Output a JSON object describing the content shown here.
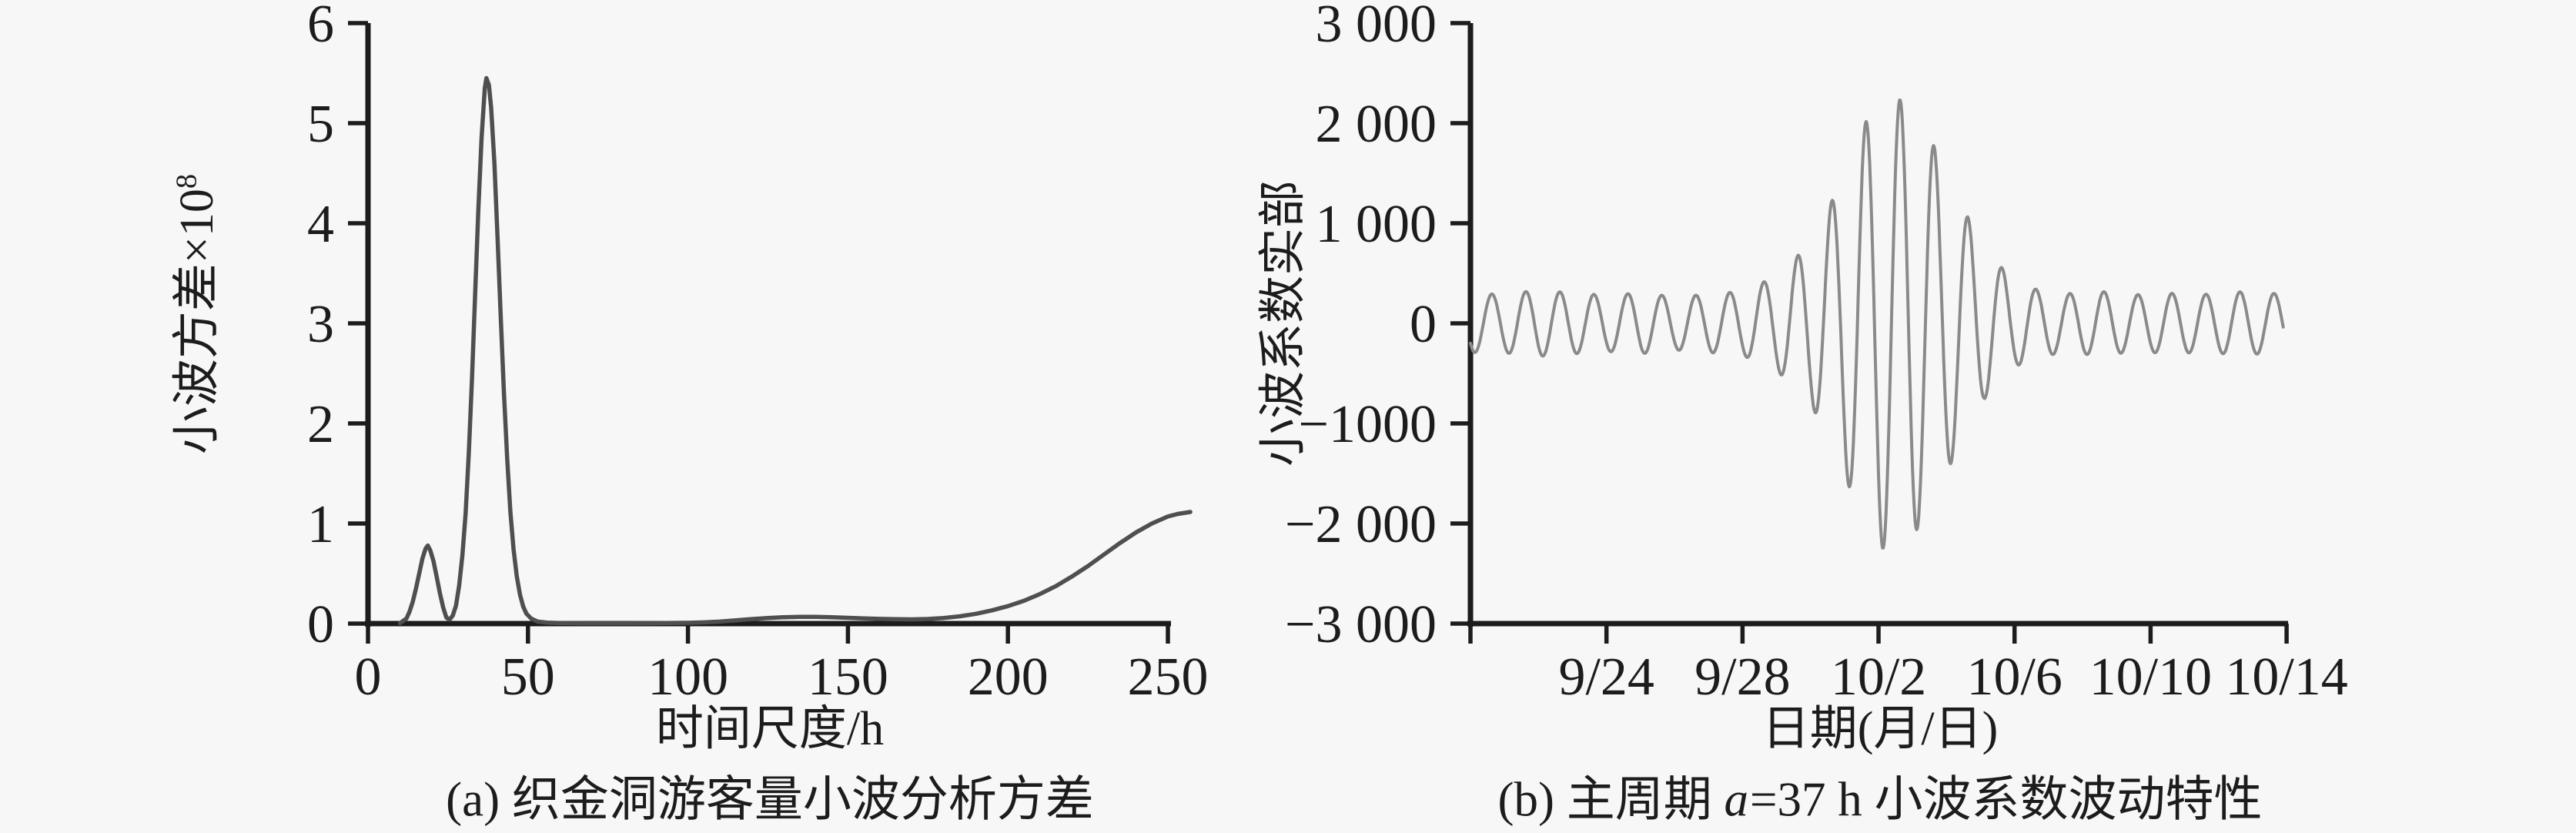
{
  "figure": {
    "background_color": "#f7f7f7",
    "axis_color": "#1c1c1c",
    "text_color": "#1c1c1c"
  },
  "chart_data": [
    {
      "type": "line",
      "title": "(a) 织金洞游客量小波分析方差",
      "xlabel": "时间尺度/h",
      "ylabel": "小波方差×10⁸",
      "ylabel_main": "小波方差×10",
      "ylabel_sup": "8",
      "xlim": [
        0,
        257
      ],
      "ylim": [
        0,
        6
      ],
      "grid": false,
      "legend": "none",
      "line_color": "#4f4f4f",
      "x_ticks": [
        0,
        50,
        100,
        150,
        200,
        250
      ],
      "x_tick_labels": [
        "0",
        "50",
        "100",
        "150",
        "200",
        "250"
      ],
      "y_ticks": [
        0,
        1,
        2,
        3,
        4,
        5,
        6
      ],
      "y_tick_labels": [
        "0",
        "1",
        "2",
        "3",
        "4",
        "5",
        "6"
      ],
      "peaks_note": "small peak ~0.78 at 18 h, main peak 5.45 at 37 h, rising tail to ~1.1 at 257 h",
      "points": [
        [
          10,
          0.005
        ],
        [
          12,
          0.05
        ],
        [
          13,
          0.12
        ],
        [
          14,
          0.22
        ],
        [
          15,
          0.35
        ],
        [
          16,
          0.5
        ],
        [
          17,
          0.65
        ],
        [
          18,
          0.75
        ],
        [
          18.7,
          0.78
        ],
        [
          19.5,
          0.73
        ],
        [
          20.5,
          0.62
        ],
        [
          21.5,
          0.46
        ],
        [
          22.5,
          0.3
        ],
        [
          23.5,
          0.16
        ],
        [
          24.5,
          0.06
        ],
        [
          25.5,
          0.04
        ],
        [
          26.5,
          0.08
        ],
        [
          27.5,
          0.18
        ],
        [
          28.5,
          0.38
        ],
        [
          29.5,
          0.68
        ],
        [
          30.5,
          1.1
        ],
        [
          31.5,
          1.7
        ],
        [
          32.5,
          2.45
        ],
        [
          33.5,
          3.3
        ],
        [
          34.5,
          4.15
        ],
        [
          35.5,
          4.85
        ],
        [
          36.5,
          5.35
        ],
        [
          37,
          5.45
        ],
        [
          37.8,
          5.38
        ],
        [
          38.5,
          5.15
        ],
        [
          39.5,
          4.6
        ],
        [
          40.5,
          3.85
        ],
        [
          41.5,
          3.05
        ],
        [
          42.5,
          2.3
        ],
        [
          43.5,
          1.65
        ],
        [
          44.5,
          1.12
        ],
        [
          45.5,
          0.74
        ],
        [
          46.5,
          0.47
        ],
        [
          47.5,
          0.29
        ],
        [
          48.5,
          0.17
        ],
        [
          49.5,
          0.1
        ],
        [
          51,
          0.05
        ],
        [
          53,
          0.02
        ],
        [
          56,
          0.01
        ],
        [
          60,
          0.006
        ],
        [
          70,
          0.004
        ],
        [
          80,
          0.004
        ],
        [
          90,
          0.005
        ],
        [
          100,
          0.008
        ],
        [
          105,
          0.012
        ],
        [
          110,
          0.02
        ],
        [
          115,
          0.032
        ],
        [
          120,
          0.045
        ],
        [
          125,
          0.056
        ],
        [
          130,
          0.064
        ],
        [
          135,
          0.068
        ],
        [
          140,
          0.067
        ],
        [
          145,
          0.063
        ],
        [
          150,
          0.058
        ],
        [
          155,
          0.052
        ],
        [
          160,
          0.047
        ],
        [
          165,
          0.044
        ],
        [
          170,
          0.042
        ],
        [
          175,
          0.046
        ],
        [
          180,
          0.056
        ],
        [
          185,
          0.073
        ],
        [
          190,
          0.098
        ],
        [
          195,
          0.132
        ],
        [
          200,
          0.175
        ],
        [
          205,
          0.228
        ],
        [
          210,
          0.295
        ],
        [
          215,
          0.375
        ],
        [
          220,
          0.47
        ],
        [
          225,
          0.575
        ],
        [
          230,
          0.69
        ],
        [
          235,
          0.805
        ],
        [
          240,
          0.91
        ],
        [
          245,
          1.0
        ],
        [
          250,
          1.07
        ],
        [
          253,
          1.095
        ],
        [
          257,
          1.115
        ]
      ]
    },
    {
      "type": "line",
      "title": "(b) 主周期 a=37 h 小波系数波动特性",
      "title_prefix": "(b) 主周期 ",
      "title_italic": "a",
      "title_suffix": "=37 h 小波系数波动特性",
      "xlabel": "日期(月/日)",
      "ylabel": "小波系数实部",
      "xlim_days": [
        0,
        23.9
      ],
      "ylim": [
        -3000,
        3000
      ],
      "grid": false,
      "legend": "none",
      "line_color": "#8a8a8a",
      "x_ticks": [
        {
          "day": 0,
          "label": ""
        },
        {
          "day": 4,
          "label": "9/24"
        },
        {
          "day": 8,
          "label": "9/28"
        },
        {
          "day": 12,
          "label": "10/2"
        },
        {
          "day": 16,
          "label": "10/6"
        },
        {
          "day": 20,
          "label": "10/10"
        },
        {
          "day": 24,
          "label": "10/14"
        }
      ],
      "y_ticks": [
        3000,
        2000,
        1000,
        0,
        -1000,
        -2000,
        -3000
      ],
      "y_tick_labels": [
        "3 000",
        "2 000",
        "1 000",
        "0",
        "−1000",
        "−2 000",
        "−3 000"
      ],
      "oscillation": {
        "description": "amplitude-modulated sine: ~±300 tails, burst peaking ±2250 around 10/2",
        "period_days": 1.0,
        "phase_crest_day": 0.63,
        "envelope": [
          [
            0,
            290
          ],
          [
            1,
            295
          ],
          [
            2,
            330
          ],
          [
            3,
            305
          ],
          [
            4,
            280
          ],
          [
            5,
            305
          ],
          [
            6,
            265
          ],
          [
            7,
            290
          ],
          [
            8,
            320
          ],
          [
            9,
            470
          ],
          [
            10,
            800
          ],
          [
            10.8,
            1340
          ],
          [
            11.5,
            1950
          ],
          [
            12.1,
            2250
          ],
          [
            12.8,
            2230
          ],
          [
            13.5,
            1870
          ],
          [
            14.3,
            1270
          ],
          [
            15.1,
            760
          ],
          [
            15.9,
            450
          ],
          [
            16.7,
            330
          ],
          [
            17.5,
            295
          ],
          [
            18.5,
            320
          ],
          [
            19.5,
            285
          ],
          [
            20.6,
            300
          ],
          [
            21.6,
            290
          ],
          [
            22.6,
            315
          ],
          [
            23.9,
            295
          ]
        ]
      }
    }
  ]
}
